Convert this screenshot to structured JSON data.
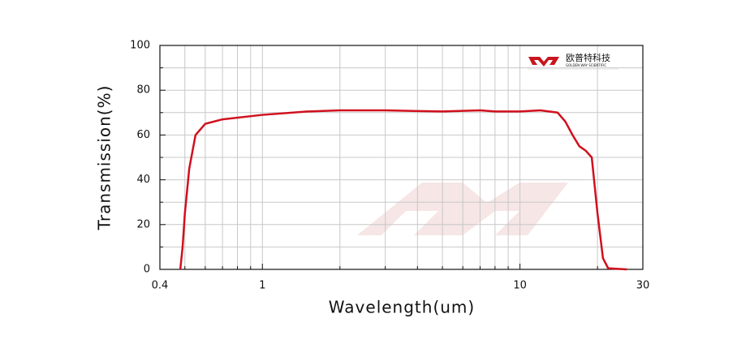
{
  "chart_data": {
    "type": "line",
    "xlabel": "Wavelength(um)",
    "ylabel": "Transmission(%)",
    "xscale": "log",
    "xlim": [
      0.4,
      30
    ],
    "xticks": [
      0.4,
      1,
      10,
      30
    ],
    "x_minor_gridlines": [
      0.5,
      0.6,
      0.7,
      0.8,
      0.9,
      2,
      3,
      4,
      5,
      6,
      7,
      8,
      9,
      20
    ],
    "ylim": [
      0,
      100
    ],
    "yticks": [
      0,
      20,
      40,
      60,
      80,
      100
    ],
    "y_minor_gridlines": [
      10,
      30,
      50,
      70,
      90
    ],
    "grid": true,
    "x": [
      0.48,
      0.49,
      0.5,
      0.52,
      0.55,
      0.6,
      0.7,
      1,
      1.5,
      2,
      3,
      5,
      7,
      8,
      10,
      12,
      14,
      15,
      16,
      17,
      18,
      19,
      20,
      21,
      22,
      26
    ],
    "series": [
      {
        "color": "#d0101e",
        "values": [
          0,
          10,
          25,
          45,
          60,
          65,
          67,
          69,
          70.5,
          71,
          71,
          70.5,
          71,
          70.5,
          70.5,
          71,
          70,
          66,
          60,
          55,
          53,
          50,
          25,
          5,
          0.5,
          0
        ]
      }
    ],
    "logo": {
      "name": "欧普特科技",
      "subtitle": "GOLDEN WAY SCIENTIFIC"
    }
  }
}
